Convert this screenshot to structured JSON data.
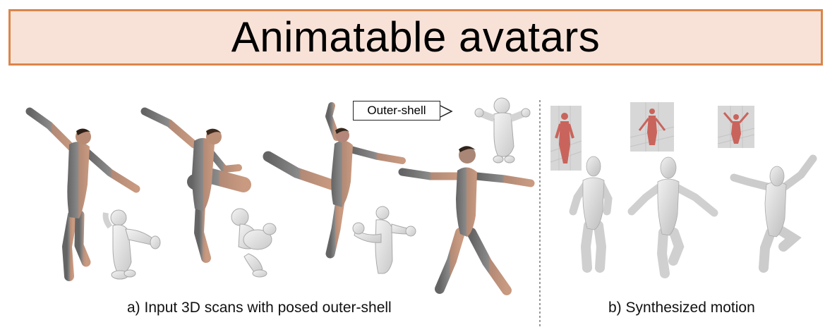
{
  "title": "Animatable avatars",
  "callout": {
    "label": "Outer-shell"
  },
  "captions": {
    "a": "a) Input 3D scans with posed outer-shell",
    "b": "b) Synthesized motion"
  },
  "colors": {
    "banner_fill": "#f8e2d7",
    "banner_border": "#d9864a",
    "skin": "#c99a80",
    "scan_gray": "#6f6f6f",
    "shell_gray": "#e2e2e2",
    "avatar_red": "#c9645c"
  }
}
